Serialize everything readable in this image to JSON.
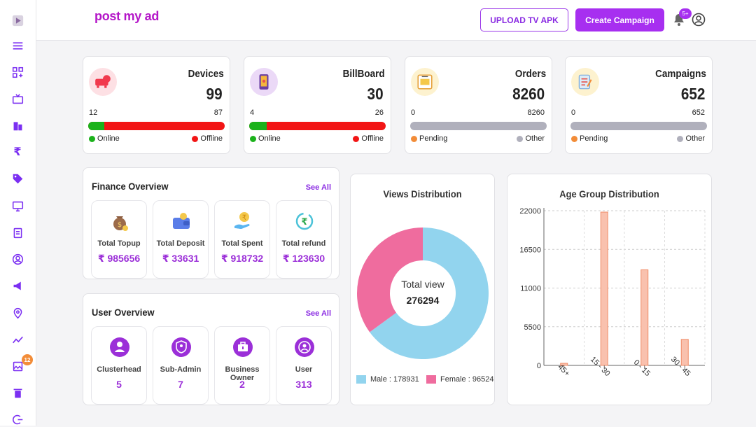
{
  "app": {
    "logo": "post my ad"
  },
  "header": {
    "upload_label": "UPLOAD TV APK",
    "create_label": "Create Campaign",
    "notif_count": "5+"
  },
  "sidebar": {
    "badge": "12",
    "icons": [
      "play-logo-icon",
      "menu-icon",
      "dashboard-icon",
      "tv-icon",
      "building-icon",
      "rupee-icon",
      "tag-icon",
      "monitor-icon",
      "clipboard-icon",
      "user-circle-icon",
      "megaphone-icon",
      "location-pin-icon",
      "trend-icon",
      "gallery-icon",
      "trash-icon",
      "logout-icon"
    ]
  },
  "stats": [
    {
      "title": "Devices",
      "value": "99",
      "min": "12",
      "max": "87",
      "fill_pct": 12,
      "fill_color": "#1bb21b",
      "rest_color": "#f21515",
      "legend_a": "Online",
      "legend_b": "Offline",
      "color_a": "#1bb21b",
      "color_b": "#f21515",
      "icon_bg": "#fde0e4"
    },
    {
      "title": "BillBoard",
      "value": "30",
      "min": "4",
      "max": "26",
      "fill_pct": 13,
      "fill_color": "#1bb21b",
      "rest_color": "#f21515",
      "legend_a": "Online",
      "legend_b": "Offline",
      "color_a": "#1bb21b",
      "color_b": "#f21515",
      "icon_bg": "#ebd9f7"
    },
    {
      "title": "Orders",
      "value": "8260",
      "min": "0",
      "max": "8260",
      "fill_pct": 0,
      "fill_color": "#b0b0bc",
      "rest_color": "#b0b0bc",
      "legend_a": "Pending",
      "legend_b": "Other",
      "color_a": "#f28c38",
      "color_b": "#b0b0bc",
      "icon_bg": "#fdf2cf"
    },
    {
      "title": "Campaigns",
      "value": "652",
      "min": "0",
      "max": "652",
      "fill_pct": 0,
      "fill_color": "#b0b0bc",
      "rest_color": "#b0b0bc",
      "legend_a": "Pending",
      "legend_b": "Other",
      "color_a": "#f28c38",
      "color_b": "#b0b0bc",
      "icon_bg": "#fdf2cf"
    }
  ],
  "finance": {
    "title": "Finance Overview",
    "see_all": "See All",
    "items": [
      {
        "label": "Total Topup",
        "value": "₹ 985656",
        "icon": "money-bag-icon"
      },
      {
        "label": "Total Deposit",
        "value": "₹ 33631",
        "icon": "wallet-icon"
      },
      {
        "label": "Total Spent",
        "value": "₹ 918732",
        "icon": "hand-coin-icon"
      },
      {
        "label": "Total refund",
        "value": "₹ 123630",
        "icon": "refund-icon"
      }
    ]
  },
  "users": {
    "title": "User Overview",
    "see_all": "See All",
    "items": [
      {
        "label": "Clusterhead",
        "value": "5",
        "icon": "person-icon"
      },
      {
        "label": "Sub-Admin",
        "value": "7",
        "icon": "shield-user-icon"
      },
      {
        "label": "Business Owner",
        "value": "2",
        "icon": "briefcase-icon"
      },
      {
        "label": "User",
        "value": "313",
        "icon": "user-icon"
      }
    ]
  },
  "chart_data": [
    {
      "type": "pie",
      "title": "Views Distribution",
      "center_label": "Total view",
      "center_value": "276294",
      "categories": [
        "Male",
        "Female"
      ],
      "values": [
        178931,
        96524
      ],
      "colors": [
        "#92d4ee",
        "#ef6c9e"
      ],
      "legend": [
        "Male : 178931",
        "Female : 96524"
      ],
      "legend_position": "bottom"
    },
    {
      "type": "bar",
      "title": "Age Group Distribution",
      "categories": [
        "45+",
        "15 - 30",
        "0 - 15",
        "30 - 45"
      ],
      "values": [
        300,
        21800,
        13600,
        3700
      ],
      "yticks": [
        "0",
        "5500",
        "11000",
        "16500",
        "22000"
      ],
      "ylim": [
        0,
        22000
      ],
      "grid": true,
      "bar_color": "#f9c1ae",
      "bar_edge": "#f08b66"
    }
  ]
}
